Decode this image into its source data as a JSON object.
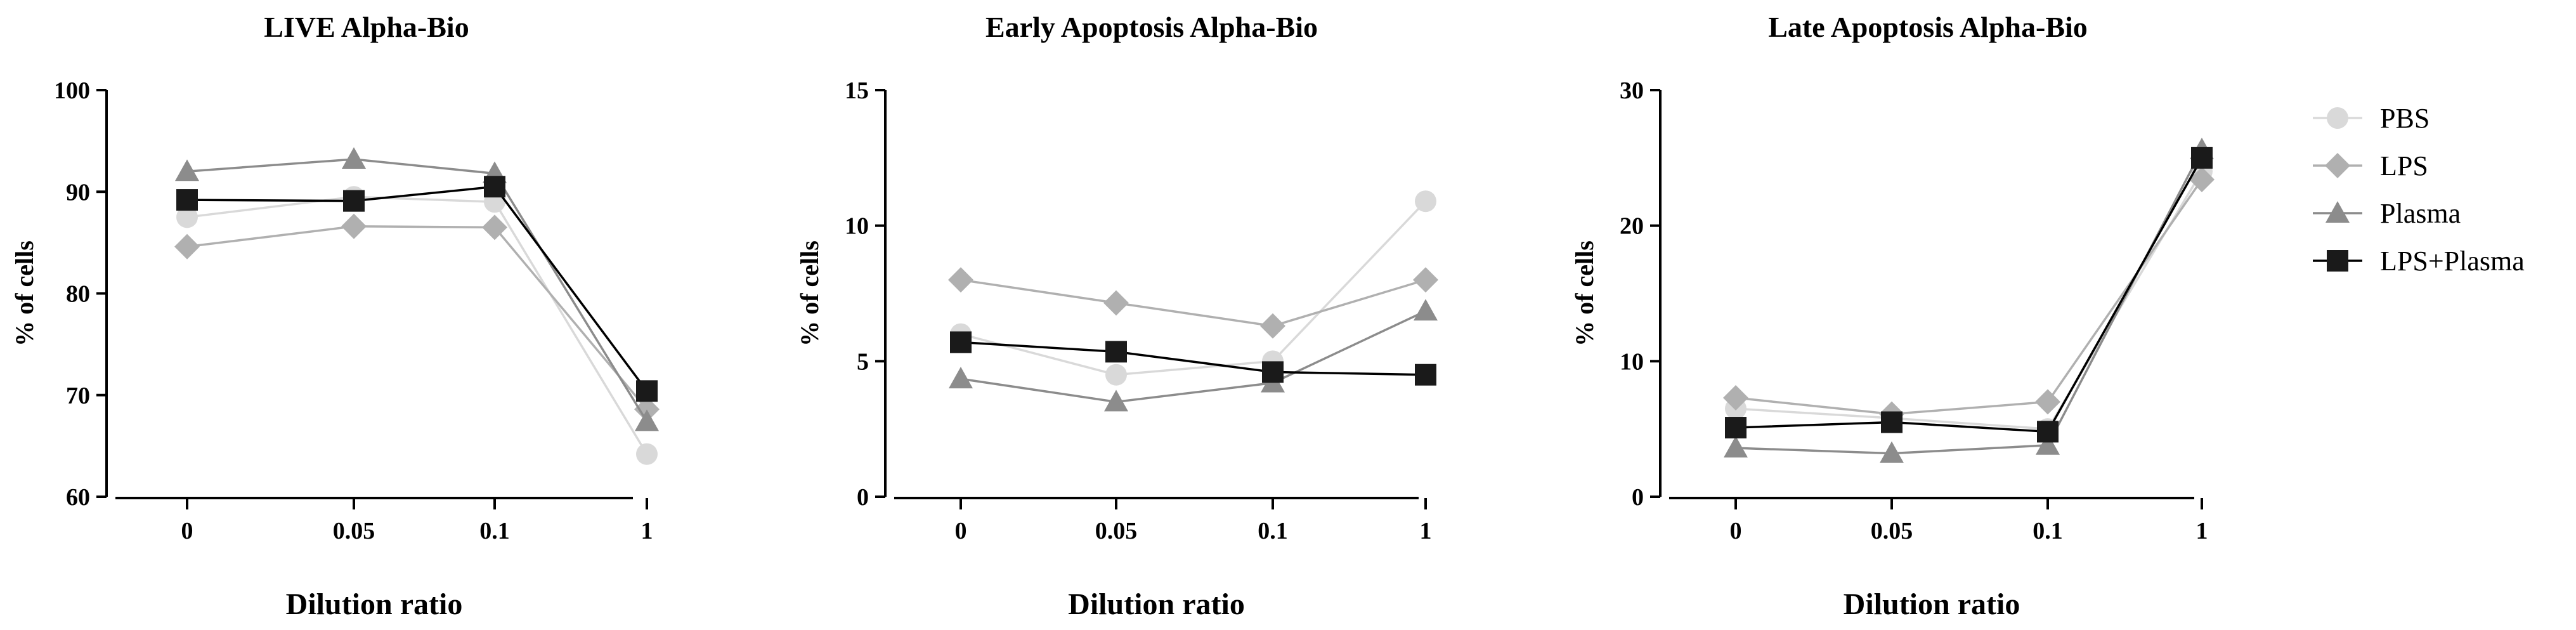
{
  "legend": [
    {
      "name": "PBS",
      "color": "#d9d9d9",
      "marker": "circle"
    },
    {
      "name": "LPS",
      "color": "#b0b0b0",
      "marker": "diamond"
    },
    {
      "name": "Plasma",
      "color": "#8c8c8c",
      "marker": "triangle"
    },
    {
      "name": "LPS+Plasma",
      "color": "#1a1a1a",
      "marker": "square"
    }
  ],
  "chart_data": [
    {
      "type": "line",
      "title": "LIVE Alpha-Bio",
      "xlabel": "Dilution ratio",
      "ylabel": "% of cells",
      "categories": [
        "0",
        "0.05",
        "0.1",
        "1"
      ],
      "ylim": [
        60,
        100
      ],
      "yticks": [
        "60",
        "70",
        "80",
        "90",
        "100"
      ],
      "series": [
        {
          "name": "PBS",
          "values": [
            87.5,
            89.5,
            89.0,
            64.2
          ]
        },
        {
          "name": "LPS",
          "values": [
            84.6,
            86.6,
            86.5,
            68.6
          ]
        },
        {
          "name": "Plasma",
          "values": [
            92.0,
            93.2,
            91.8,
            67.4
          ]
        },
        {
          "name": "LPS+Plasma",
          "values": [
            89.2,
            89.1,
            90.5,
            70.4
          ]
        }
      ]
    },
    {
      "type": "line",
      "title": "Early Apoptosis Alpha-Bio",
      "xlabel": "Dilution ratio",
      "ylabel": "% of cells",
      "categories": [
        "0",
        "0.05",
        "0.1",
        "1"
      ],
      "ylim": [
        0,
        15
      ],
      "yticks": [
        "0",
        "5",
        "10",
        "15"
      ],
      "series": [
        {
          "name": "PBS",
          "values": [
            6.0,
            4.5,
            5.0,
            10.9
          ]
        },
        {
          "name": "LPS",
          "values": [
            8.0,
            7.15,
            6.3,
            8.0
          ]
        },
        {
          "name": "Plasma",
          "values": [
            4.35,
            3.5,
            4.2,
            6.85
          ]
        },
        {
          "name": "LPS+Plasma",
          "values": [
            5.7,
            5.35,
            4.6,
            4.5
          ]
        }
      ]
    },
    {
      "type": "line",
      "title": "Late Apoptosis Alpha-Bio",
      "xlabel": "Dilution ratio",
      "ylabel": "% of cells",
      "categories": [
        "0",
        "0.05",
        "0.1",
        "1"
      ],
      "ylim": [
        0,
        30
      ],
      "yticks": [
        "0",
        "10",
        "20",
        "30"
      ],
      "series": [
        {
          "name": "PBS",
          "values": [
            6.5,
            5.8,
            5.0,
            24.0
          ]
        },
        {
          "name": "LPS",
          "values": [
            7.3,
            6.1,
            7.0,
            23.4
          ]
        },
        {
          "name": "Plasma",
          "values": [
            3.6,
            3.2,
            3.8,
            25.6
          ]
        },
        {
          "name": "LPS+Plasma",
          "values": [
            5.1,
            5.5,
            4.8,
            25.0
          ]
        }
      ]
    }
  ]
}
